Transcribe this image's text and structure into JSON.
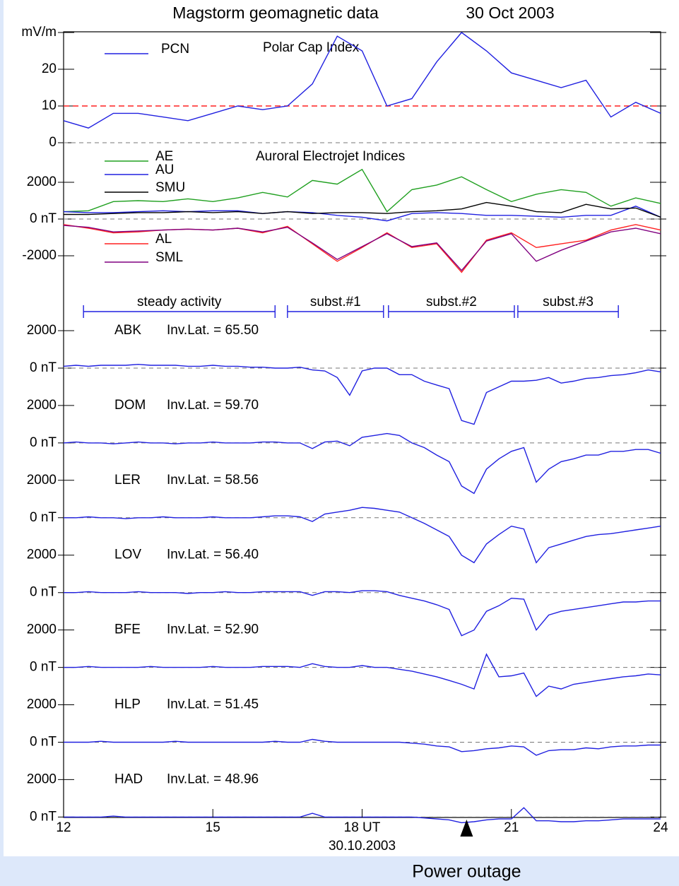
{
  "chart_data": [
    {
      "type": "line",
      "title": "Magstorm geomagnetic data",
      "subtitle": "30 Oct  2003",
      "annotation": "Polar Cap Index",
      "x": [
        12,
        12.5,
        13,
        13.5,
        14,
        14.5,
        15,
        15.5,
        16,
        16.5,
        17,
        17.5,
        18,
        18.5,
        19,
        19.5,
        20,
        20.5,
        21,
        21.5,
        22,
        22.5,
        23,
        23.5,
        24
      ],
      "series": [
        {
          "name": "PCN",
          "color": "#2020e0",
          "values": [
            6,
            4,
            8,
            8,
            7,
            6,
            8,
            10,
            9,
            10,
            16,
            29,
            25,
            10,
            12,
            22,
            30,
            25,
            19,
            17,
            15,
            17,
            7,
            11,
            8
          ]
        }
      ],
      "reference_line": {
        "value": 10,
        "color": "#ff2020"
      },
      "xlim": [
        12,
        24
      ],
      "ylim": [
        0,
        30
      ],
      "yticks": [
        0,
        10,
        20,
        {
          "value": 30,
          "label": "mV/m"
        }
      ],
      "zero_line": true
    },
    {
      "type": "line",
      "annotation": "Auroral Electrojet Indices",
      "x": [
        12,
        12.5,
        13,
        13.5,
        14,
        14.5,
        15,
        15.5,
        16,
        16.5,
        17,
        17.5,
        18,
        18.5,
        19,
        19.5,
        20,
        20.5,
        21,
        21.5,
        22,
        22.5,
        23,
        23.5,
        24
      ],
      "series": [
        {
          "name": "AE",
          "color": "#20a020",
          "values": [
            400,
            450,
            950,
            1000,
            950,
            1100,
            950,
            1150,
            1450,
            1200,
            2100,
            1900,
            2700,
            400,
            1600,
            1850,
            2300,
            1600,
            950,
            1350,
            1600,
            1450,
            700,
            1150,
            850
          ]
        },
        {
          "name": "AU",
          "color": "#2020e0",
          "values": [
            400,
            350,
            350,
            400,
            450,
            400,
            450,
            450,
            300,
            400,
            350,
            200,
            100,
            -100,
            300,
            350,
            300,
            200,
            200,
            150,
            100,
            200,
            200,
            700,
            100
          ]
        },
        {
          "name": "SMU",
          "color": "#000000",
          "values": [
            250,
            250,
            300,
            350,
            350,
            400,
            350,
            400,
            300,
            400,
            300,
            350,
            350,
            300,
            400,
            450,
            550,
            900,
            700,
            400,
            350,
            800,
            550,
            600,
            100
          ]
        },
        {
          "name": "AL",
          "color": "#ff2020",
          "values": [
            -300,
            -500,
            -750,
            -700,
            -600,
            -550,
            -600,
            -500,
            -750,
            -400,
            -1350,
            -2300,
            -1550,
            -750,
            -1550,
            -1350,
            -2900,
            -1150,
            -750,
            -1550,
            -1350,
            -1150,
            -600,
            -300,
            -600
          ]
        },
        {
          "name": "SML",
          "color": "#800080",
          "values": [
            -350,
            -450,
            -700,
            -650,
            -600,
            -550,
            -600,
            -500,
            -700,
            -450,
            -1300,
            -2200,
            -1500,
            -800,
            -1500,
            -1300,
            -2800,
            -1200,
            -800,
            -2300,
            -1700,
            -1200,
            -700,
            -500,
            -800
          ]
        }
      ],
      "phases": [
        {
          "label": "steady activity",
          "start": 12.4,
          "end": 16.25
        },
        {
          "label": "subst.#1",
          "start": 16.5,
          "end": 18.43
        },
        {
          "label": "subst.#2",
          "start": 18.53,
          "end": 21.06
        },
        {
          "label": "subst.#3",
          "start": 21.13,
          "end": 23.15
        }
      ],
      "xlim": [
        12,
        24
      ],
      "ylim": [
        -4000,
        4000
      ],
      "yticks": [
        2000,
        {
          "value": 0,
          "label": "0 nT"
        },
        -2000
      ],
      "zero_line": true
    },
    {
      "type": "line",
      "title": "ABK",
      "subtitle": "Inv.Lat. = 65.50",
      "color": "#2020e0",
      "x": [
        12,
        12.25,
        12.5,
        12.75,
        13,
        13.25,
        13.5,
        13.75,
        14,
        14.25,
        14.5,
        14.75,
        15,
        15.25,
        15.5,
        15.75,
        16,
        16.25,
        16.5,
        16.75,
        17,
        17.25,
        17.5,
        17.75,
        18,
        18.25,
        18.5,
        18.75,
        19,
        19.25,
        19.5,
        19.75,
        20,
        20.25,
        20.5,
        20.75,
        21,
        21.25,
        21.5,
        21.75,
        22,
        22.25,
        22.5,
        22.75,
        23,
        23.25,
        23.5,
        23.75,
        24
      ],
      "values": [
        100,
        150,
        100,
        150,
        150,
        150,
        200,
        150,
        150,
        150,
        100,
        100,
        150,
        100,
        100,
        50,
        50,
        0,
        0,
        50,
        -100,
        -150,
        -500,
        -1450,
        -150,
        0,
        0,
        -350,
        -350,
        -700,
        -900,
        -1100,
        -2800,
        -3000,
        -1300,
        -1000,
        -700,
        -700,
        -650,
        -500,
        -800,
        -700,
        -550,
        -500,
        -400,
        -350,
        -250,
        -100,
        -200
      ],
      "xlim": [
        12,
        24
      ],
      "ylim": [
        -2000,
        2000
      ],
      "yticks": [
        2000,
        {
          "value": 0,
          "label": "0 nT"
        }
      ],
      "zero_line": true
    },
    {
      "type": "line",
      "title": "DOM",
      "subtitle": "Inv.Lat. = 59.70",
      "color": "#2020e0",
      "x": [
        12,
        12.25,
        12.5,
        12.75,
        13,
        13.25,
        13.5,
        13.75,
        14,
        14.25,
        14.5,
        14.75,
        15,
        15.25,
        15.5,
        15.75,
        16,
        16.25,
        16.5,
        16.75,
        17,
        17.25,
        17.5,
        17.75,
        18,
        18.25,
        18.5,
        18.75,
        19,
        19.25,
        19.5,
        19.75,
        20,
        20.25,
        20.5,
        20.75,
        21,
        21.25,
        21.5,
        21.75,
        22,
        22.25,
        22.5,
        22.75,
        23,
        23.25,
        23.5,
        23.75,
        24
      ],
      "values": [
        0,
        50,
        0,
        0,
        -50,
        0,
        50,
        0,
        0,
        -50,
        0,
        0,
        50,
        0,
        0,
        0,
        50,
        50,
        0,
        0,
        -300,
        50,
        100,
        -150,
        300,
        400,
        500,
        400,
        0,
        -250,
        -650,
        -1000,
        -2300,
        -2700,
        -1400,
        -850,
        -450,
        -250,
        -2100,
        -1400,
        -1000,
        -850,
        -650,
        -650,
        -450,
        -450,
        -350,
        -350,
        -550
      ],
      "xlim": [
        12,
        24
      ],
      "ylim": [
        -2000,
        2000
      ],
      "yticks": [
        2000,
        {
          "value": 0,
          "label": "0 nT"
        }
      ],
      "zero_line": true
    },
    {
      "type": "line",
      "title": "LER",
      "subtitle": "Inv.Lat. = 58.56",
      "color": "#2020e0",
      "x": [
        12,
        12.25,
        12.5,
        12.75,
        13,
        13.25,
        13.5,
        13.75,
        14,
        14.25,
        14.5,
        14.75,
        15,
        15.25,
        15.5,
        15.75,
        16,
        16.25,
        16.5,
        16.75,
        17,
        17.25,
        17.5,
        17.75,
        18,
        18.25,
        18.5,
        18.75,
        19,
        19.25,
        19.5,
        19.75,
        20,
        20.25,
        20.5,
        20.75,
        21,
        21.25,
        21.5,
        21.75,
        22,
        22.25,
        22.5,
        22.75,
        23,
        23.25,
        23.5,
        23.75,
        24
      ],
      "values": [
        0,
        0,
        50,
        0,
        0,
        -50,
        0,
        0,
        50,
        0,
        0,
        0,
        50,
        0,
        0,
        0,
        50,
        100,
        100,
        50,
        -200,
        200,
        300,
        400,
        550,
        500,
        400,
        300,
        0,
        -300,
        -650,
        -1000,
        -2000,
        -2400,
        -1400,
        -900,
        -450,
        -600,
        -2400,
        -1600,
        -1400,
        -1200,
        -1000,
        -900,
        -850,
        -750,
        -650,
        -550,
        -450
      ],
      "xlim": [
        12,
        24
      ],
      "ylim": [
        -2000,
        2000
      ],
      "yticks": [
        2000,
        {
          "value": 0,
          "label": "0 nT"
        }
      ],
      "zero_line": true
    },
    {
      "type": "line",
      "title": "LOV",
      "subtitle": "Inv.Lat. = 56.40",
      "color": "#2020e0",
      "x": [
        12,
        12.25,
        12.5,
        12.75,
        13,
        13.25,
        13.5,
        13.75,
        14,
        14.25,
        14.5,
        14.75,
        15,
        15.25,
        15.5,
        15.75,
        16,
        16.25,
        16.5,
        16.75,
        17,
        17.25,
        17.5,
        17.75,
        18,
        18.25,
        18.5,
        18.75,
        19,
        19.25,
        19.5,
        19.75,
        20,
        20.25,
        20.5,
        20.75,
        21,
        21.25,
        21.5,
        21.75,
        22,
        22.25,
        22.5,
        22.75,
        23,
        23.25,
        23.5,
        23.75,
        24
      ],
      "values": [
        0,
        0,
        50,
        0,
        0,
        0,
        50,
        0,
        0,
        0,
        -50,
        0,
        0,
        50,
        0,
        0,
        50,
        50,
        50,
        50,
        -150,
        50,
        50,
        0,
        100,
        100,
        50,
        -150,
        -300,
        -450,
        -650,
        -900,
        -2300,
        -2000,
        -1000,
        -700,
        -300,
        -350,
        -2000,
        -1200,
        -1000,
        -900,
        -800,
        -700,
        -600,
        -500,
        -500,
        -450,
        -450
      ],
      "xlim": [
        12,
        24
      ],
      "ylim": [
        -2000,
        2000
      ],
      "yticks": [
        2000,
        {
          "value": 0,
          "label": "0 nT"
        }
      ],
      "zero_line": true
    },
    {
      "type": "line",
      "title": "BFE",
      "subtitle": "Inv.Lat. = 52.90",
      "color": "#2020e0",
      "x": [
        12,
        12.25,
        12.5,
        12.75,
        13,
        13.25,
        13.5,
        13.75,
        14,
        14.25,
        14.5,
        14.75,
        15,
        15.25,
        15.5,
        15.75,
        16,
        16.25,
        16.5,
        16.75,
        17,
        17.25,
        17.5,
        17.75,
        18,
        18.25,
        18.5,
        18.75,
        19,
        19.25,
        19.5,
        19.75,
        20,
        20.25,
        20.5,
        20.75,
        21,
        21.25,
        21.5,
        21.75,
        22,
        22.25,
        22.5,
        22.75,
        23,
        23.25,
        23.5,
        23.75,
        24
      ],
      "values": [
        0,
        0,
        50,
        0,
        0,
        0,
        0,
        50,
        0,
        0,
        0,
        0,
        50,
        0,
        0,
        0,
        50,
        50,
        50,
        0,
        200,
        50,
        0,
        0,
        100,
        0,
        0,
        -100,
        -200,
        -350,
        -500,
        -700,
        -900,
        -1150,
        700,
        -500,
        -450,
        -300,
        -1550,
        -1000,
        -1150,
        -900,
        -800,
        -700,
        -600,
        -500,
        -450,
        -350,
        -400
      ],
      "xlim": [
        12,
        24
      ],
      "ylim": [
        -2000,
        2000
      ],
      "yticks": [
        2000,
        {
          "value": 0,
          "label": "0 nT"
        }
      ],
      "zero_line": true
    },
    {
      "type": "line",
      "title": "HLP",
      "subtitle": "Inv.Lat. = 51.45",
      "color": "#2020e0",
      "x": [
        12,
        12.25,
        12.5,
        12.75,
        13,
        13.25,
        13.5,
        13.75,
        14,
        14.25,
        14.5,
        14.75,
        15,
        15.25,
        15.5,
        15.75,
        16,
        16.25,
        16.5,
        16.75,
        17,
        17.25,
        17.5,
        17.75,
        18,
        18.25,
        18.5,
        18.75,
        19,
        19.25,
        19.5,
        19.75,
        20,
        20.25,
        20.5,
        20.75,
        21,
        21.25,
        21.5,
        21.75,
        22,
        22.25,
        22.5,
        22.75,
        23,
        23.25,
        23.5,
        23.75,
        24
      ],
      "values": [
        0,
        0,
        0,
        50,
        0,
        0,
        0,
        0,
        0,
        50,
        0,
        0,
        0,
        0,
        0,
        0,
        0,
        50,
        0,
        0,
        150,
        50,
        0,
        0,
        0,
        0,
        0,
        0,
        -50,
        -100,
        -200,
        -250,
        -500,
        -450,
        -350,
        -300,
        -200,
        -250,
        -700,
        -450,
        -400,
        -400,
        -300,
        -350,
        -250,
        -200,
        -200,
        -150,
        -150
      ],
      "xlim": [
        12,
        24
      ],
      "ylim": [
        -2000,
        2000
      ],
      "yticks": [
        2000,
        {
          "value": 0,
          "label": "0 nT"
        }
      ],
      "zero_line": true
    },
    {
      "type": "line",
      "title": "HAD",
      "subtitle": "Inv.Lat. = 48.96",
      "color": "#2020e0",
      "x": [
        12,
        12.25,
        12.5,
        12.75,
        13,
        13.25,
        13.5,
        13.75,
        14,
        14.25,
        14.5,
        14.75,
        15,
        15.25,
        15.5,
        15.75,
        16,
        16.25,
        16.5,
        16.75,
        17,
        17.25,
        17.5,
        17.75,
        18,
        18.25,
        18.5,
        18.75,
        19,
        19.25,
        19.5,
        19.75,
        20,
        20.25,
        20.5,
        20.75,
        21,
        21.25,
        21.5,
        21.75,
        22,
        22.25,
        22.5,
        22.75,
        23,
        23.25,
        23.5,
        23.75,
        24
      ],
      "values": [
        0,
        0,
        0,
        0,
        50,
        0,
        0,
        0,
        0,
        0,
        0,
        0,
        0,
        0,
        0,
        0,
        0,
        0,
        0,
        0,
        200,
        0,
        0,
        0,
        0,
        0,
        0,
        0,
        0,
        -50,
        -100,
        -150,
        -300,
        -250,
        -150,
        -100,
        -100,
        500,
        -200,
        -200,
        -250,
        -250,
        -200,
        -200,
        -150,
        -100,
        -100,
        -100,
        -100
      ],
      "xlim": [
        12,
        24
      ],
      "ylim": [
        -2000,
        2000
      ],
      "yticks": [
        2000,
        {
          "value": 0,
          "label": "0 nT"
        }
      ],
      "zero_line": true,
      "xticks": [
        12,
        15,
        {
          "value": 18,
          "label": "18 UT"
        },
        21,
        24
      ],
      "xlabel": "30.10.2003",
      "event": {
        "label": "Power outage",
        "x": 20.1
      }
    }
  ]
}
